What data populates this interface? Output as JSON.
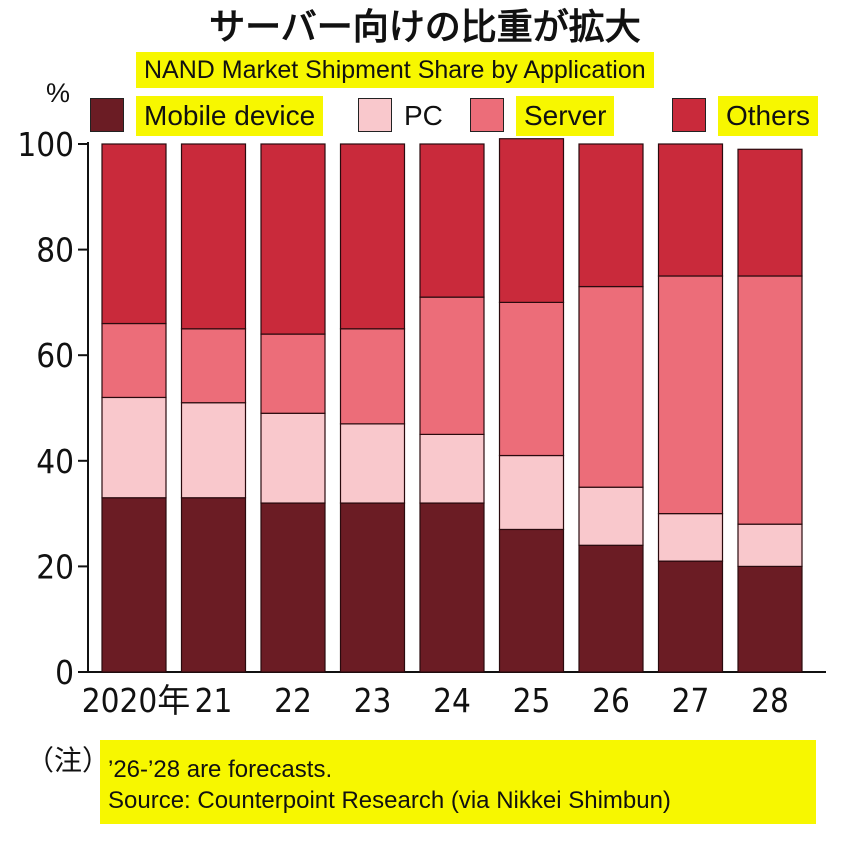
{
  "title": "サーバー向けの比重が拡大",
  "subtitle": "NAND Market Shipment Share by Application",
  "unit": "%",
  "legend": [
    {
      "label": "Mobile device",
      "color": "#6b1c24",
      "highlight": true
    },
    {
      "label": "PC",
      "color": "#f9c8cc",
      "highlight": false
    },
    {
      "label": "Server",
      "color": "#ec6d79",
      "highlight": true
    },
    {
      "label": "Others",
      "color": "#c92a3b",
      "highlight": true
    }
  ],
  "chart_data": {
    "type": "bar",
    "stacked": true,
    "categories": [
      "2020年",
      "21",
      "22",
      "23",
      "24",
      "25",
      "26",
      "27",
      "28"
    ],
    "series": [
      {
        "name": "Mobile device",
        "color": "#6b1c24",
        "values": [
          33,
          33,
          32,
          32,
          32,
          27,
          24,
          21,
          20
        ]
      },
      {
        "name": "PC",
        "color": "#f9c8cc",
        "values": [
          19,
          18,
          17,
          15,
          13,
          14,
          11,
          9,
          8
        ]
      },
      {
        "name": "Server",
        "color": "#ec6d79",
        "values": [
          14,
          14,
          15,
          18,
          26,
          29,
          38,
          45,
          47
        ]
      },
      {
        "name": "Others",
        "color": "#c92a3b",
        "values": [
          34,
          35,
          36,
          35,
          29,
          31,
          27,
          25,
          24
        ]
      }
    ],
    "ylim": [
      0,
      100
    ],
    "yticks": [
      "0",
      "20",
      "40",
      "60",
      "80",
      "100"
    ],
    "ylabel": "%",
    "title": "NAND Market Shipment Share by Application"
  },
  "note": {
    "prefix": "（注）",
    "lines": [
      "’26-’28 are forecasts.",
      "Source: Counterpoint Research (via Nikkei Shimbun)"
    ]
  }
}
